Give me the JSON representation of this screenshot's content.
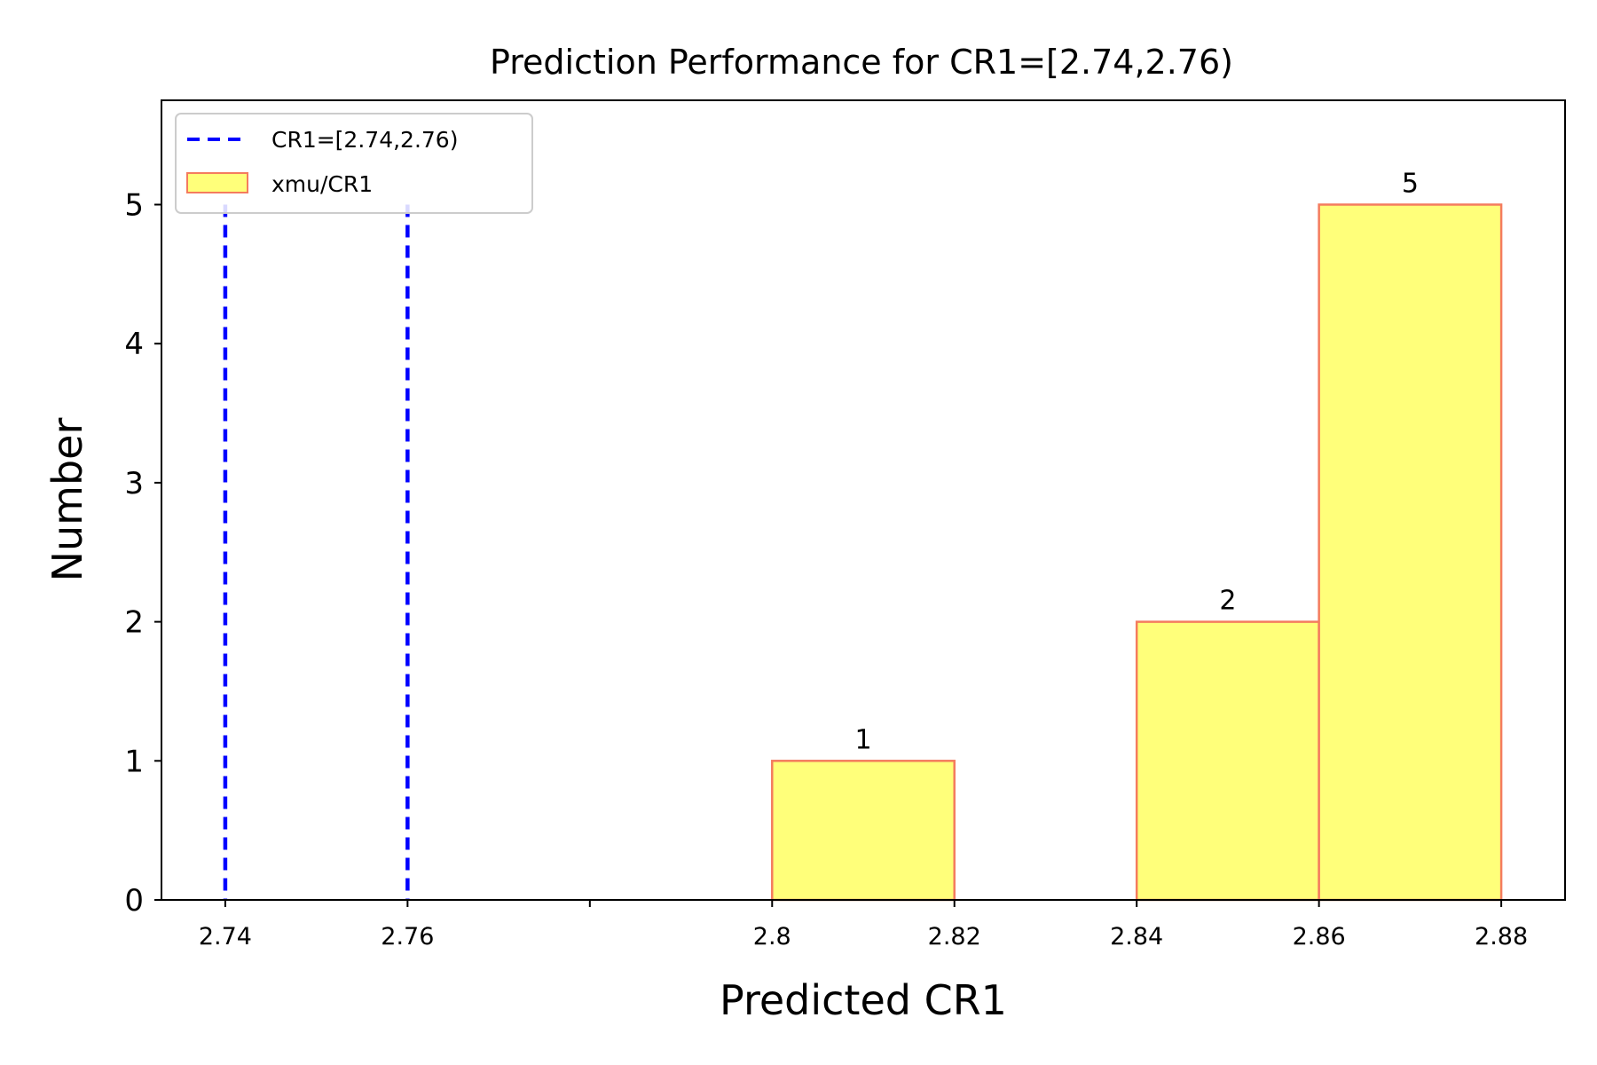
{
  "chart_data": {
    "type": "bar",
    "title": "Prediction Performance for CR1=[2.74,2.76)",
    "xlabel": "Predicted CR1",
    "ylabel": "Number",
    "xlim": [
      2.733,
      2.887
    ],
    "ylim": [
      0,
      5.75
    ],
    "xticks": [
      2.74,
      2.76,
      2.78,
      2.8,
      2.82,
      2.84,
      2.86,
      2.88
    ],
    "xtick_labels": [
      "2.74",
      "2.76",
      "",
      "2.8",
      "2.82",
      "2.84",
      "2.86",
      "2.88"
    ],
    "yticks": [
      0,
      1,
      2,
      3,
      4,
      5
    ],
    "ytick_labels": [
      "0",
      "1",
      "2",
      "3",
      "4",
      "5"
    ],
    "grid": false,
    "legend_position": "upper-left",
    "legend": [
      {
        "label": "CR1=[2.74,2.76)",
        "kind": "dashed-line",
        "color": "#0000ff"
      },
      {
        "label": "xmu/CR1",
        "kind": "patch",
        "color": "#ffff7a",
        "edge": "#f47c5e"
      }
    ],
    "bins": [
      {
        "start": 2.8,
        "end": 2.82,
        "value": 1,
        "label": "1"
      },
      {
        "start": 2.84,
        "end": 2.86,
        "value": 2,
        "label": "2"
      },
      {
        "start": 2.86,
        "end": 2.88,
        "value": 5,
        "label": "5"
      }
    ],
    "vlines": [
      {
        "x": 2.74,
        "color": "#0000ff"
      },
      {
        "x": 2.76,
        "color": "#0000ff"
      }
    ],
    "bar_fill": "#ffff7a",
    "bar_edge": "#f47c5e"
  }
}
